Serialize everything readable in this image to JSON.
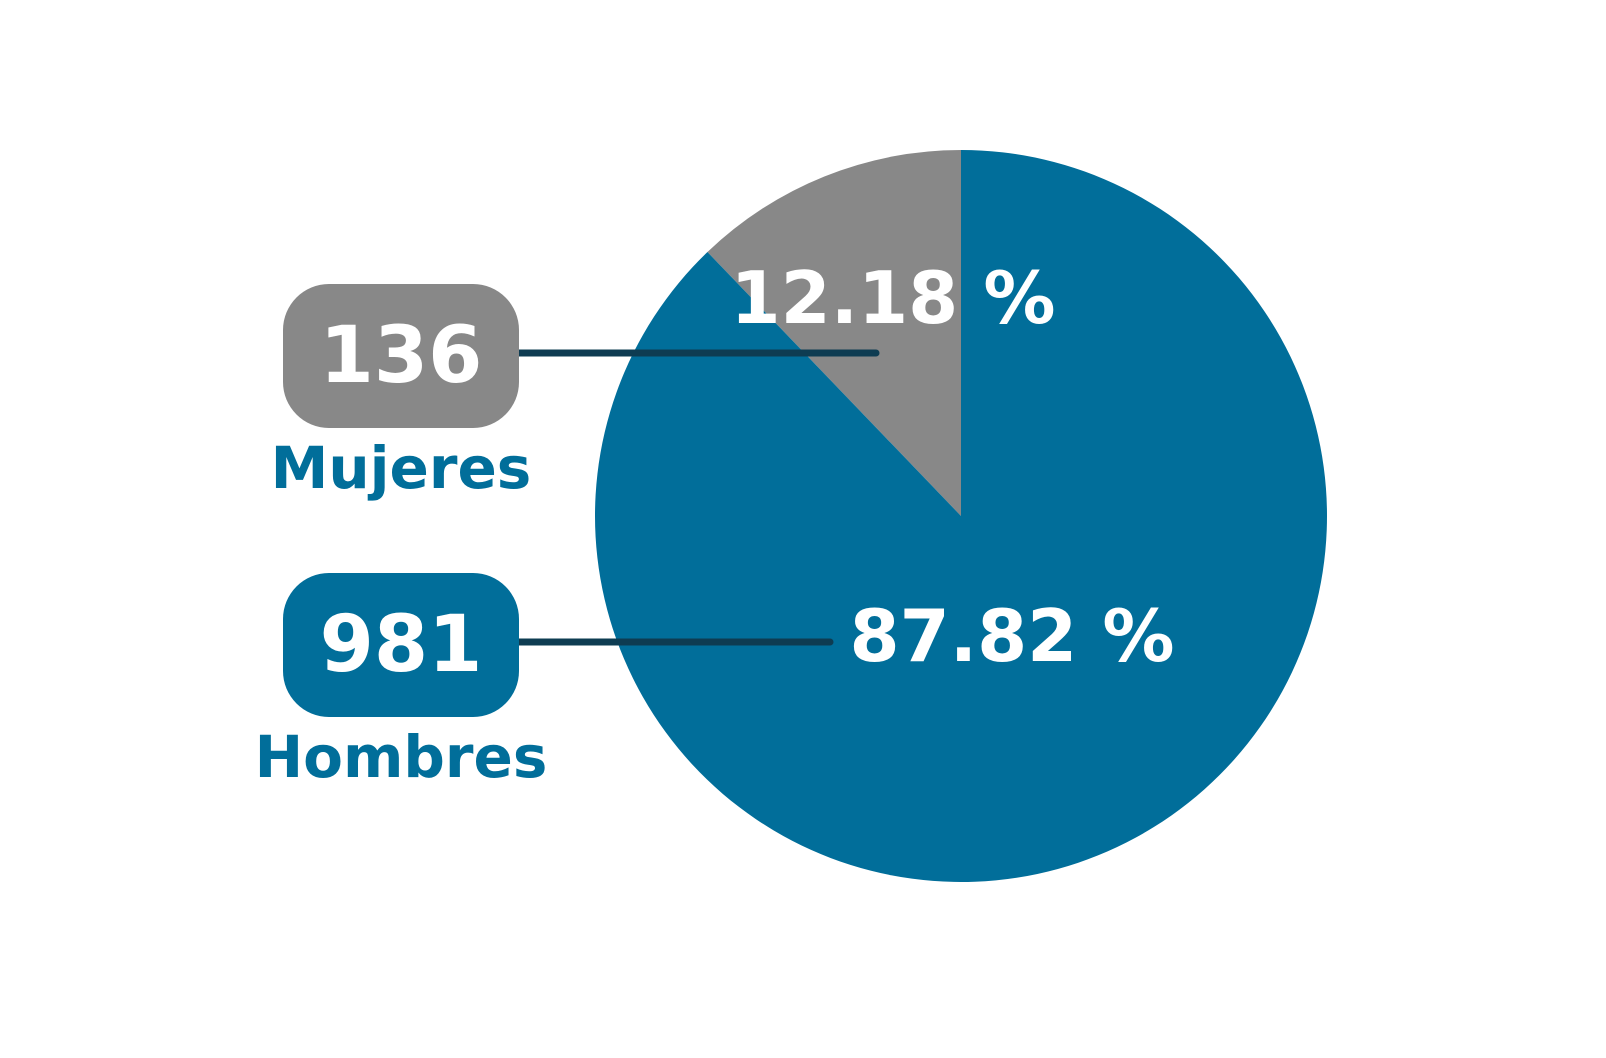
{
  "chart_data": {
    "type": "pie",
    "categories": [
      "Mujeres",
      "Hombres"
    ],
    "values": [
      12.18,
      87.82
    ],
    "value_labels": [
      "12.18 %",
      "87.82 %"
    ],
    "counts": [
      136,
      981
    ],
    "colors": [
      "#888888",
      "#016e9a"
    ],
    "connector_color": "#0e3c52"
  }
}
